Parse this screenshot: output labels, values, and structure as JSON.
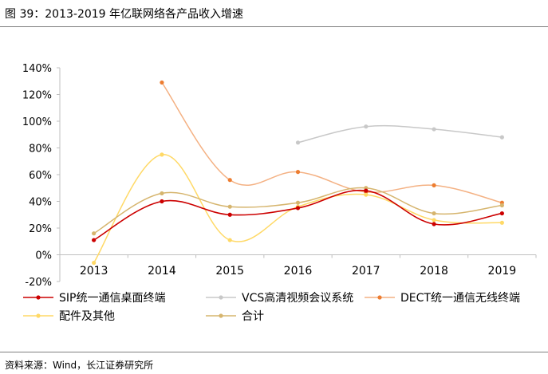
{
  "title": "图 39：2013-2019 年亿联网络各产品收入增速",
  "source": "资料来源：Wind，长江证券研究所",
  "colors": {
    "sip": "#cc0000",
    "vcs": "#c8c8c8",
    "dect": "#f4b183",
    "dect_marker": "#ed7d31",
    "parts": "#ffd966",
    "total": "#d6b56e",
    "axis": "#bfbfbf"
  },
  "chart_data": {
    "type": "line",
    "title": "2013-2019 年亿联网络各产品收入增速",
    "x": [
      "2013",
      "2014",
      "2015",
      "2016",
      "2017",
      "2018",
      "2019"
    ],
    "ylim": [
      -20,
      140
    ],
    "yticks": [
      -20,
      0,
      20,
      40,
      60,
      80,
      100,
      120,
      140
    ],
    "ytick_labels": [
      "-20%",
      "0%",
      "20%",
      "40%",
      "60%",
      "80%",
      "100%",
      "120%",
      "140%"
    ],
    "ylabel": "",
    "xlabel": "",
    "grid": false,
    "legend_position": "bottom",
    "series": [
      {
        "key": "sip",
        "name": "SIP统一通信桌面终端",
        "values": [
          11,
          40,
          30,
          35,
          48,
          23,
          31
        ]
      },
      {
        "key": "vcs",
        "name": "VCS高清视频会议系统",
        "values": [
          null,
          null,
          null,
          84,
          96,
          94,
          88
        ]
      },
      {
        "key": "dect",
        "name": "DECT统一通信无线终端",
        "values": [
          null,
          129,
          56,
          62,
          47,
          52,
          39
        ]
      },
      {
        "key": "parts",
        "name": "配件及其他",
        "values": [
          -6,
          75,
          11,
          36,
          45,
          26,
          24
        ]
      },
      {
        "key": "total",
        "name": "合计",
        "values": [
          16,
          46,
          36,
          39,
          50,
          31,
          37
        ]
      }
    ]
  }
}
